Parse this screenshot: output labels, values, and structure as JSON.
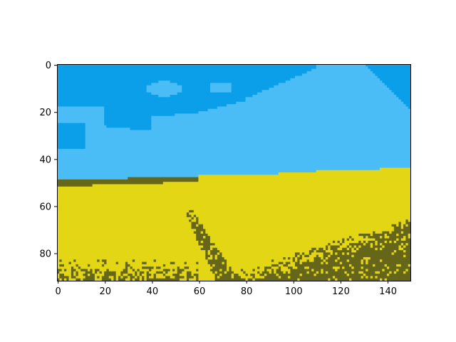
{
  "chart_data": {
    "type": "heatmap",
    "title": "",
    "xlabel": "",
    "ylabel": "",
    "xlim": [
      0,
      150
    ],
    "ylim": [
      92,
      0
    ],
    "x_ticks": [
      "0",
      "20",
      "40",
      "60",
      "80",
      "100",
      "120",
      "140"
    ],
    "y_ticks": [
      "0",
      "20",
      "40",
      "60",
      "80"
    ],
    "x_tick_values": [
      0,
      20,
      40,
      60,
      80,
      100,
      120,
      140
    ],
    "y_tick_values": [
      0,
      20,
      40,
      60,
      80
    ],
    "palette": {
      "sky_deep": "#0a9fe8",
      "sky_light": "#4bbdf6",
      "field_yellow": "#e3d614",
      "field_dark": "#66661a"
    },
    "image_grid": {
      "columns": 150,
      "rows": 92
    },
    "grid": false
  }
}
